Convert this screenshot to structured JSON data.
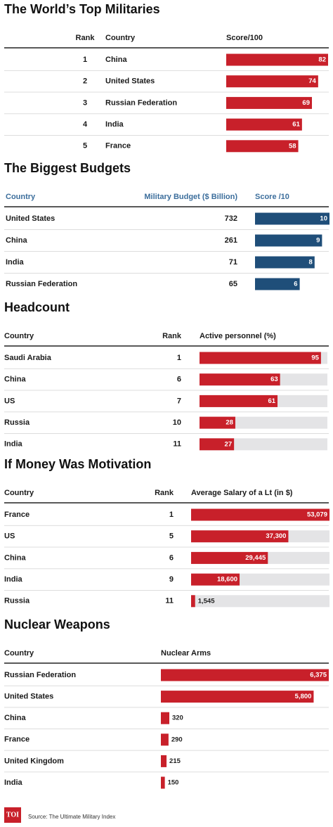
{
  "chart_data": [
    {
      "type": "bar",
      "title": "The World’s Top Militaries",
      "columns": [
        "Rank",
        "Country",
        "Score/100"
      ],
      "ranks": [
        1,
        2,
        3,
        4,
        5
      ],
      "categories": [
        "China",
        "United States",
        "Russian Federation",
        "India",
        "France"
      ],
      "values": [
        82,
        74,
        69,
        61,
        58
      ],
      "color": "#c8202a",
      "xlim": [
        0,
        82
      ]
    },
    {
      "type": "bar",
      "title": "The Biggest Budgets",
      "columns": [
        "Country",
        "Military Budget ($ Billion)",
        "Score /10"
      ],
      "categories": [
        "United States",
        "China",
        "India",
        "Russian Federation"
      ],
      "budgets": [
        732,
        261,
        71,
        65
      ],
      "values": [
        10,
        9,
        8,
        6
      ],
      "color": "#1f4e79",
      "xlim": [
        0,
        10
      ]
    },
    {
      "type": "bar",
      "title": "Headcount",
      "columns": [
        "Country",
        "Rank",
        "Active personnel (%)"
      ],
      "categories": [
        "Saudi Arabia",
        "China",
        "US",
        "Russia",
        "India"
      ],
      "ranks": [
        1,
        6,
        7,
        10,
        11
      ],
      "values": [
        95,
        63,
        61,
        28,
        27
      ],
      "color": "#c8202a",
      "xlim": [
        0,
        100
      ],
      "track": true
    },
    {
      "type": "bar",
      "title": "If Money Was Motivation",
      "columns": [
        "Country",
        "Rank",
        "Average Salary of a Lt (in $)"
      ],
      "categories": [
        "France",
        "US",
        "China",
        "India",
        "Russia"
      ],
      "ranks": [
        1,
        5,
        6,
        9,
        11
      ],
      "values": [
        53079,
        37300,
        29445,
        18600,
        1545
      ],
      "value_labels": [
        "53,079",
        "37,300",
        "29,445",
        "18,600",
        "1,545"
      ],
      "color": "#c8202a",
      "xlim": [
        0,
        53079
      ],
      "track": true
    },
    {
      "type": "bar",
      "title": "Nuclear Weapons",
      "columns": [
        "Country",
        "Nuclear Arms"
      ],
      "categories": [
        "Russian Federation",
        "United States",
        "China",
        "France",
        "United Kingdom",
        "India"
      ],
      "values": [
        6375,
        5800,
        320,
        290,
        215,
        150
      ],
      "value_labels": [
        "6,375",
        "5,800",
        "320",
        "290",
        "215",
        "150"
      ],
      "color": "#c8202a",
      "xlim": [
        0,
        6375
      ]
    }
  ],
  "footer": {
    "logo": "TOI",
    "source": "Source: The Ultimate Military Index"
  }
}
